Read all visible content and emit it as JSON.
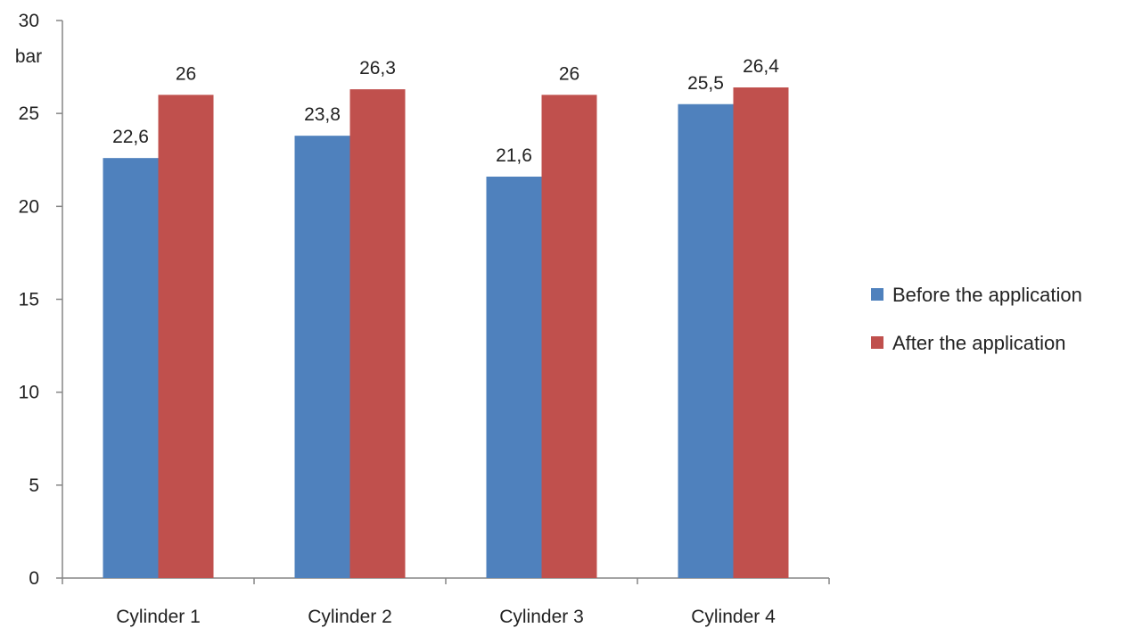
{
  "chart_data": {
    "type": "bar",
    "categories": [
      "Cylinder 1",
      "Cylinder 2",
      "Cylinder 3",
      "Cylinder 4"
    ],
    "series": [
      {
        "name": "Before the application",
        "values": [
          22.6,
          23.8,
          21.6,
          25.5
        ],
        "labels": [
          "22,6",
          "23,8",
          "21,6",
          "25,5"
        ],
        "color": "#4F81BD"
      },
      {
        "name": "After the application",
        "values": [
          26,
          26.3,
          26,
          26.4
        ],
        "labels": [
          "26",
          "26,3",
          "26",
          "26,4"
        ],
        "color": "#C0504D"
      }
    ],
    "y_ticks": [
      0,
      5,
      10,
      15,
      20,
      25,
      30
    ],
    "ylabel": "bar",
    "ylim": [
      0,
      30
    ],
    "grid": false,
    "legend_position": "right"
  }
}
